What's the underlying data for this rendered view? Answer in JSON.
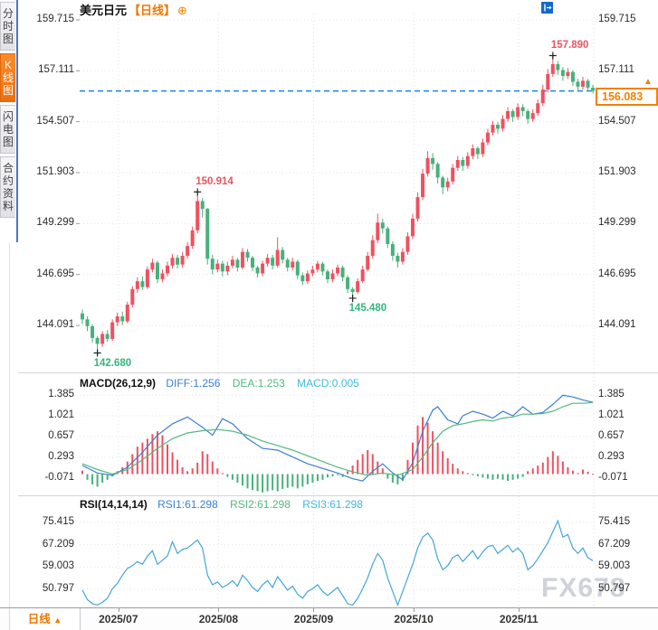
{
  "header": {
    "title": "美元日元",
    "period_tag": "【日线】",
    "expand_icon": "⊕"
  },
  "toolbar": {
    "icons": [
      "crosshair",
      "zoom-in",
      "zoom-out",
      "pan-right"
    ]
  },
  "sidebar": {
    "tabs": [
      {
        "label": "分时图",
        "active": false
      },
      {
        "label": "K线图",
        "active": true
      },
      {
        "label": "闪电图",
        "active": false
      },
      {
        "label": "合约资料",
        "active": false
      }
    ]
  },
  "current_price_label": "156.083",
  "macd_header": {
    "name": "MACD(26,12,9)",
    "diff": "DIFF:1.256",
    "dea": "DEA:1.253",
    "macd": "MACD:0.005"
  },
  "rsi_header": {
    "name": "RSI(14,14,14)",
    "rsi1": "RSI1:61.298",
    "rsi2": "RSI2:61.298",
    "rsi3": "RSI3:61.298"
  },
  "bottom": {
    "period_button": "日线",
    "period_arrow": "▲"
  },
  "watermark": "FX678",
  "colors": {
    "up": "#ef5160",
    "down": "#47b17a",
    "accent_orange": "#f07800",
    "toolbar_blue": "#1568c9",
    "dashed_line": "#1e80e8",
    "diff_line": "#3a7fd5",
    "dea_line": "#52b87e",
    "macd_cyan": "#3fb9dd",
    "rsi_line": "#42a6d9",
    "annotation_red": "#e85460",
    "annotation_green": "#35b57c",
    "grid": "#e3e3e8",
    "marker": "#222222"
  },
  "chart_data": {
    "type": "candlestick",
    "symbol": "美元日元",
    "interval": "日线",
    "price_ticks": [
      159.715,
      157.111,
      154.507,
      151.903,
      149.299,
      146.695,
      144.091
    ],
    "current_price": 156.083,
    "month_ticks": [
      {
        "label": "2025/07",
        "idx": 7.2
      },
      {
        "label": "2025/08",
        "idx": 27.2
      },
      {
        "label": "2025/09",
        "idx": 46.2
      },
      {
        "label": "2025/10",
        "idx": 66.2
      },
      {
        "label": "2025/11",
        "idx": 87.2
      }
    ],
    "annotations": [
      {
        "idx": 3,
        "price": 142.68,
        "label": "142.680",
        "color": "green",
        "side": "below"
      },
      {
        "idx": 23,
        "price": 150.914,
        "label": "150.914",
        "color": "red",
        "side": "above"
      },
      {
        "idx": 54,
        "price": 145.48,
        "label": "145.480",
        "color": "green",
        "side": "below"
      },
      {
        "idx": 94,
        "price": 157.89,
        "label": "157.890",
        "color": "red",
        "side": "above"
      }
    ],
    "candles": [
      [
        144.7,
        144.9,
        144.15,
        144.4
      ],
      [
        144.4,
        144.55,
        143.8,
        144.05
      ],
      [
        144.05,
        144.15,
        143.2,
        143.45
      ],
      [
        143.45,
        143.55,
        142.68,
        143.15
      ],
      [
        143.15,
        143.8,
        143.0,
        143.65
      ],
      [
        143.65,
        143.85,
        143.25,
        143.4
      ],
      [
        143.4,
        144.4,
        143.3,
        144.25
      ],
      [
        144.25,
        144.75,
        144.05,
        144.55
      ],
      [
        144.55,
        144.8,
        144.1,
        144.3
      ],
      [
        144.3,
        145.3,
        144.2,
        145.15
      ],
      [
        145.15,
        146.1,
        145.0,
        145.95
      ],
      [
        145.95,
        146.55,
        145.75,
        146.35
      ],
      [
        146.35,
        146.6,
        145.9,
        146.05
      ],
      [
        146.05,
        147.1,
        145.95,
        146.95
      ],
      [
        146.95,
        147.5,
        146.8,
        147.3
      ],
      [
        147.3,
        147.4,
        146.25,
        146.45
      ],
      [
        146.45,
        146.95,
        146.3,
        146.75
      ],
      [
        146.75,
        147.35,
        146.6,
        147.15
      ],
      [
        147.15,
        147.75,
        147.0,
        147.55
      ],
      [
        147.55,
        147.7,
        147.0,
        147.2
      ],
      [
        147.2,
        147.85,
        147.05,
        147.65
      ],
      [
        147.65,
        148.35,
        147.5,
        148.15
      ],
      [
        148.15,
        149.15,
        148.0,
        148.95
      ],
      [
        148.95,
        150.91,
        148.8,
        150.45
      ],
      [
        150.45,
        150.6,
        149.6,
        150.05
      ],
      [
        150.05,
        150.1,
        147.2,
        147.5
      ],
      [
        147.5,
        147.7,
        146.7,
        146.95
      ],
      [
        146.95,
        147.45,
        146.8,
        147.25
      ],
      [
        147.25,
        147.4,
        146.6,
        146.85
      ],
      [
        146.85,
        147.35,
        146.65,
        147.15
      ],
      [
        147.15,
        147.65,
        147.0,
        147.45
      ],
      [
        147.45,
        147.55,
        146.85,
        147.05
      ],
      [
        147.05,
        148.05,
        146.95,
        147.85
      ],
      [
        147.85,
        148.0,
        147.35,
        147.55
      ],
      [
        147.55,
        147.65,
        146.85,
        147.05
      ],
      [
        147.05,
        147.15,
        146.55,
        146.75
      ],
      [
        146.75,
        147.4,
        146.6,
        147.25
      ],
      [
        147.25,
        147.75,
        147.1,
        147.55
      ],
      [
        147.55,
        147.7,
        146.95,
        147.15
      ],
      [
        147.15,
        148.6,
        147.05,
        147.95
      ],
      [
        147.95,
        148.1,
        147.25,
        147.45
      ],
      [
        147.45,
        147.55,
        146.85,
        147.05
      ],
      [
        147.05,
        147.55,
        146.9,
        147.35
      ],
      [
        147.35,
        147.45,
        146.45,
        146.65
      ],
      [
        146.65,
        146.8,
        146.15,
        146.35
      ],
      [
        146.35,
        146.9,
        146.2,
        146.75
      ],
      [
        146.75,
        147.15,
        146.6,
        146.95
      ],
      [
        146.95,
        147.4,
        146.8,
        147.25
      ],
      [
        147.25,
        147.35,
        146.65,
        146.85
      ],
      [
        146.85,
        146.95,
        146.25,
        146.45
      ],
      [
        146.45,
        146.95,
        146.3,
        146.75
      ],
      [
        146.75,
        147.2,
        146.6,
        147.05
      ],
      [
        147.05,
        147.15,
        146.35,
        146.55
      ],
      [
        146.55,
        146.65,
        145.75,
        145.95
      ],
      [
        145.95,
        146.05,
        145.48,
        145.8
      ],
      [
        145.8,
        146.5,
        145.7,
        146.35
      ],
      [
        146.35,
        147.15,
        146.25,
        146.95
      ],
      [
        146.95,
        147.85,
        146.85,
        147.65
      ],
      [
        147.65,
        148.7,
        147.5,
        148.45
      ],
      [
        148.45,
        149.8,
        148.3,
        149.35
      ],
      [
        149.35,
        149.55,
        148.8,
        149.05
      ],
      [
        149.05,
        149.15,
        148.05,
        148.25
      ],
      [
        148.25,
        148.4,
        147.4,
        147.65
      ],
      [
        147.65,
        147.8,
        147.05,
        147.35
      ],
      [
        147.35,
        148.05,
        147.2,
        147.85
      ],
      [
        147.85,
        148.85,
        147.7,
        148.65
      ],
      [
        148.65,
        149.8,
        148.5,
        149.55
      ],
      [
        149.55,
        150.9,
        149.4,
        150.65
      ],
      [
        150.65,
        152.1,
        150.5,
        151.85
      ],
      [
        151.85,
        153.0,
        151.7,
        152.65
      ],
      [
        152.65,
        152.9,
        152.05,
        152.35
      ],
      [
        152.35,
        152.45,
        151.35,
        151.65
      ],
      [
        151.65,
        151.75,
        150.8,
        151.15
      ],
      [
        151.15,
        151.65,
        150.95,
        151.45
      ],
      [
        151.45,
        152.35,
        151.3,
        152.15
      ],
      [
        152.15,
        152.75,
        152.0,
        152.55
      ],
      [
        152.55,
        152.7,
        152.0,
        152.25
      ],
      [
        152.25,
        152.95,
        152.1,
        152.75
      ],
      [
        152.75,
        153.35,
        152.6,
        153.15
      ],
      [
        153.15,
        153.25,
        152.6,
        152.85
      ],
      [
        152.85,
        153.65,
        152.7,
        153.45
      ],
      [
        153.45,
        154.15,
        153.3,
        153.95
      ],
      [
        153.95,
        154.55,
        153.8,
        154.35
      ],
      [
        154.35,
        154.5,
        153.9,
        154.15
      ],
      [
        154.15,
        154.85,
        154.0,
        154.65
      ],
      [
        154.65,
        155.25,
        154.5,
        155.05
      ],
      [
        155.05,
        155.15,
        154.5,
        154.75
      ],
      [
        154.75,
        155.45,
        154.6,
        155.25
      ],
      [
        155.25,
        155.4,
        154.8,
        155.05
      ],
      [
        155.05,
        155.15,
        154.4,
        154.65
      ],
      [
        154.65,
        155.15,
        154.5,
        154.95
      ],
      [
        154.95,
        155.65,
        154.8,
        155.45
      ],
      [
        155.45,
        156.4,
        155.3,
        156.15
      ],
      [
        156.15,
        157.2,
        156.0,
        156.95
      ],
      [
        156.95,
        157.89,
        156.8,
        157.45
      ],
      [
        157.45,
        157.6,
        156.9,
        157.15
      ],
      [
        157.15,
        157.3,
        156.6,
        156.85
      ],
      [
        156.85,
        157.25,
        156.7,
        157.05
      ],
      [
        157.05,
        157.15,
        156.35,
        156.55
      ],
      [
        156.55,
        156.7,
        156.1,
        156.3
      ],
      [
        156.3,
        156.8,
        156.15,
        156.6
      ],
      [
        156.6,
        156.7,
        156.05,
        156.25
      ],
      [
        156.25,
        156.4,
        155.95,
        156.08
      ]
    ],
    "macd": {
      "params": [
        26,
        12,
        9
      ],
      "diff_last": 1.256,
      "dea_last": 1.253,
      "macd_last": 0.005,
      "ticks": [
        1.385,
        1.021,
        0.657,
        0.293,
        -0.071
      ],
      "hist": [
        0.06,
        -0.1,
        -0.18,
        -0.22,
        -0.15,
        -0.1,
        -0.04,
        0.05,
        0.12,
        0.22,
        0.35,
        0.48,
        0.55,
        0.62,
        0.7,
        0.75,
        0.68,
        0.52,
        0.38,
        0.25,
        0.12,
        0.05,
        0.1,
        0.2,
        0.4,
        0.35,
        0.22,
        0.1,
        0.02,
        -0.05,
        -0.1,
        -0.15,
        -0.2,
        -0.25,
        -0.28,
        -0.3,
        -0.32,
        -0.3,
        -0.28,
        -0.3,
        -0.26,
        -0.24,
        -0.22,
        -0.25,
        -0.22,
        -0.18,
        -0.15,
        -0.12,
        -0.1,
        -0.06,
        -0.04,
        -0.02,
        -0.05,
        0.05,
        0.15,
        0.25,
        0.35,
        0.42,
        0.35,
        0.22,
        0.1,
        -0.08,
        -0.15,
        -0.18,
        -0.12,
        0.25,
        0.55,
        0.85,
        1.0,
        0.9,
        0.75,
        0.55,
        0.4,
        0.28,
        0.18,
        0.1,
        0.05,
        0.02,
        -0.02,
        -0.04,
        -0.06,
        -0.08,
        -0.1,
        -0.08,
        -0.1,
        -0.12,
        -0.1,
        -0.08,
        -0.05,
        0.05,
        0.1,
        0.15,
        0.2,
        0.3,
        0.4,
        0.32,
        0.22,
        0.12,
        0.06,
        0.02,
        0.08,
        0.04,
        0.005
      ],
      "diff_points": [
        [
          0,
          0.15
        ],
        [
          3,
          0.02
        ],
        [
          6,
          -0.02
        ],
        [
          9,
          0.12
        ],
        [
          12,
          0.38
        ],
        [
          15,
          0.68
        ],
        [
          18,
          0.88
        ],
        [
          21,
          1.0
        ],
        [
          24,
          0.82
        ],
        [
          26,
          0.68
        ],
        [
          28,
          0.97
        ],
        [
          30,
          0.88
        ],
        [
          33,
          0.62
        ],
        [
          36,
          0.45
        ],
        [
          39,
          0.42
        ],
        [
          42,
          0.3
        ],
        [
          45,
          0.18
        ],
        [
          48,
          0.1
        ],
        [
          51,
          0.02
        ],
        [
          54,
          -0.08
        ],
        [
          56,
          -0.12
        ],
        [
          58,
          0.05
        ],
        [
          60,
          0.18
        ],
        [
          62,
          0.02
        ],
        [
          64,
          -0.1
        ],
        [
          66,
          0.2
        ],
        [
          68,
          0.75
        ],
        [
          70,
          1.12
        ],
        [
          71,
          1.18
        ],
        [
          73,
          0.95
        ],
        [
          75,
          0.88
        ],
        [
          76,
          1.02
        ],
        [
          78,
          1.1
        ],
        [
          80,
          1.05
        ],
        [
          82,
          0.98
        ],
        [
          84,
          1.1
        ],
        [
          86,
          1.02
        ],
        [
          88,
          1.18
        ],
        [
          90,
          1.05
        ],
        [
          92,
          1.08
        ],
        [
          94,
          1.22
        ],
        [
          96,
          1.38
        ],
        [
          98,
          1.35
        ],
        [
          100,
          1.3
        ],
        [
          102,
          1.256
        ]
      ],
      "dea_points": [
        [
          0,
          0.18
        ],
        [
          3,
          0.08
        ],
        [
          6,
          0.0
        ],
        [
          9,
          0.08
        ],
        [
          12,
          0.25
        ],
        [
          15,
          0.45
        ],
        [
          18,
          0.62
        ],
        [
          21,
          0.72
        ],
        [
          24,
          0.76
        ],
        [
          27,
          0.78
        ],
        [
          30,
          0.75
        ],
        [
          33,
          0.68
        ],
        [
          36,
          0.58
        ],
        [
          39,
          0.5
        ],
        [
          42,
          0.42
        ],
        [
          45,
          0.32
        ],
        [
          48,
          0.22
        ],
        [
          51,
          0.12
        ],
        [
          54,
          0.04
        ],
        [
          57,
          -0.02
        ],
        [
          60,
          0.02
        ],
        [
          63,
          -0.02
        ],
        [
          66,
          0.08
        ],
        [
          68,
          0.3
        ],
        [
          70,
          0.55
        ],
        [
          72,
          0.75
        ],
        [
          74,
          0.85
        ],
        [
          76,
          0.88
        ],
        [
          78,
          0.92
        ],
        [
          80,
          0.95
        ],
        [
          82,
          0.93
        ],
        [
          84,
          0.98
        ],
        [
          86,
          1.0
        ],
        [
          88,
          1.05
        ],
        [
          90,
          1.05
        ],
        [
          92,
          1.06
        ],
        [
          94,
          1.1
        ],
        [
          96,
          1.18
        ],
        [
          98,
          1.24
        ],
        [
          100,
          1.24
        ],
        [
          102,
          1.253
        ]
      ]
    },
    "rsi": {
      "params": [
        14,
        14,
        14
      ],
      "last": 61.298,
      "ticks": [
        75.415,
        67.209,
        59.003,
        50.797
      ],
      "values": [
        50.5,
        47,
        45.5,
        45,
        46,
        47.5,
        51,
        53,
        56,
        58.5,
        59.5,
        61,
        60,
        63,
        65,
        60,
        61.5,
        63,
        68.3,
        64,
        65.5,
        66,
        67.5,
        69,
        66,
        56,
        52.5,
        53.5,
        51.5,
        52.5,
        54,
        52,
        56,
        54,
        51.5,
        50,
        52.5,
        54,
        51.5,
        55.5,
        53,
        50.5,
        52,
        49,
        47.5,
        50,
        51,
        52.5,
        50,
        48.5,
        50,
        51.5,
        48.5,
        45.5,
        45,
        47.5,
        51,
        55,
        60,
        64,
        61.5,
        55,
        50,
        45,
        50,
        55,
        60,
        66,
        70,
        71.5,
        69,
        62,
        58,
        59.5,
        62.5,
        63.5,
        61,
        63,
        65,
        62,
        64.5,
        66.5,
        67,
        64,
        65.5,
        67,
        64.5,
        66,
        64,
        58,
        59.5,
        62,
        65,
        68,
        72,
        76,
        70,
        71,
        66,
        64,
        66,
        62.5,
        61.3
      ]
    }
  }
}
